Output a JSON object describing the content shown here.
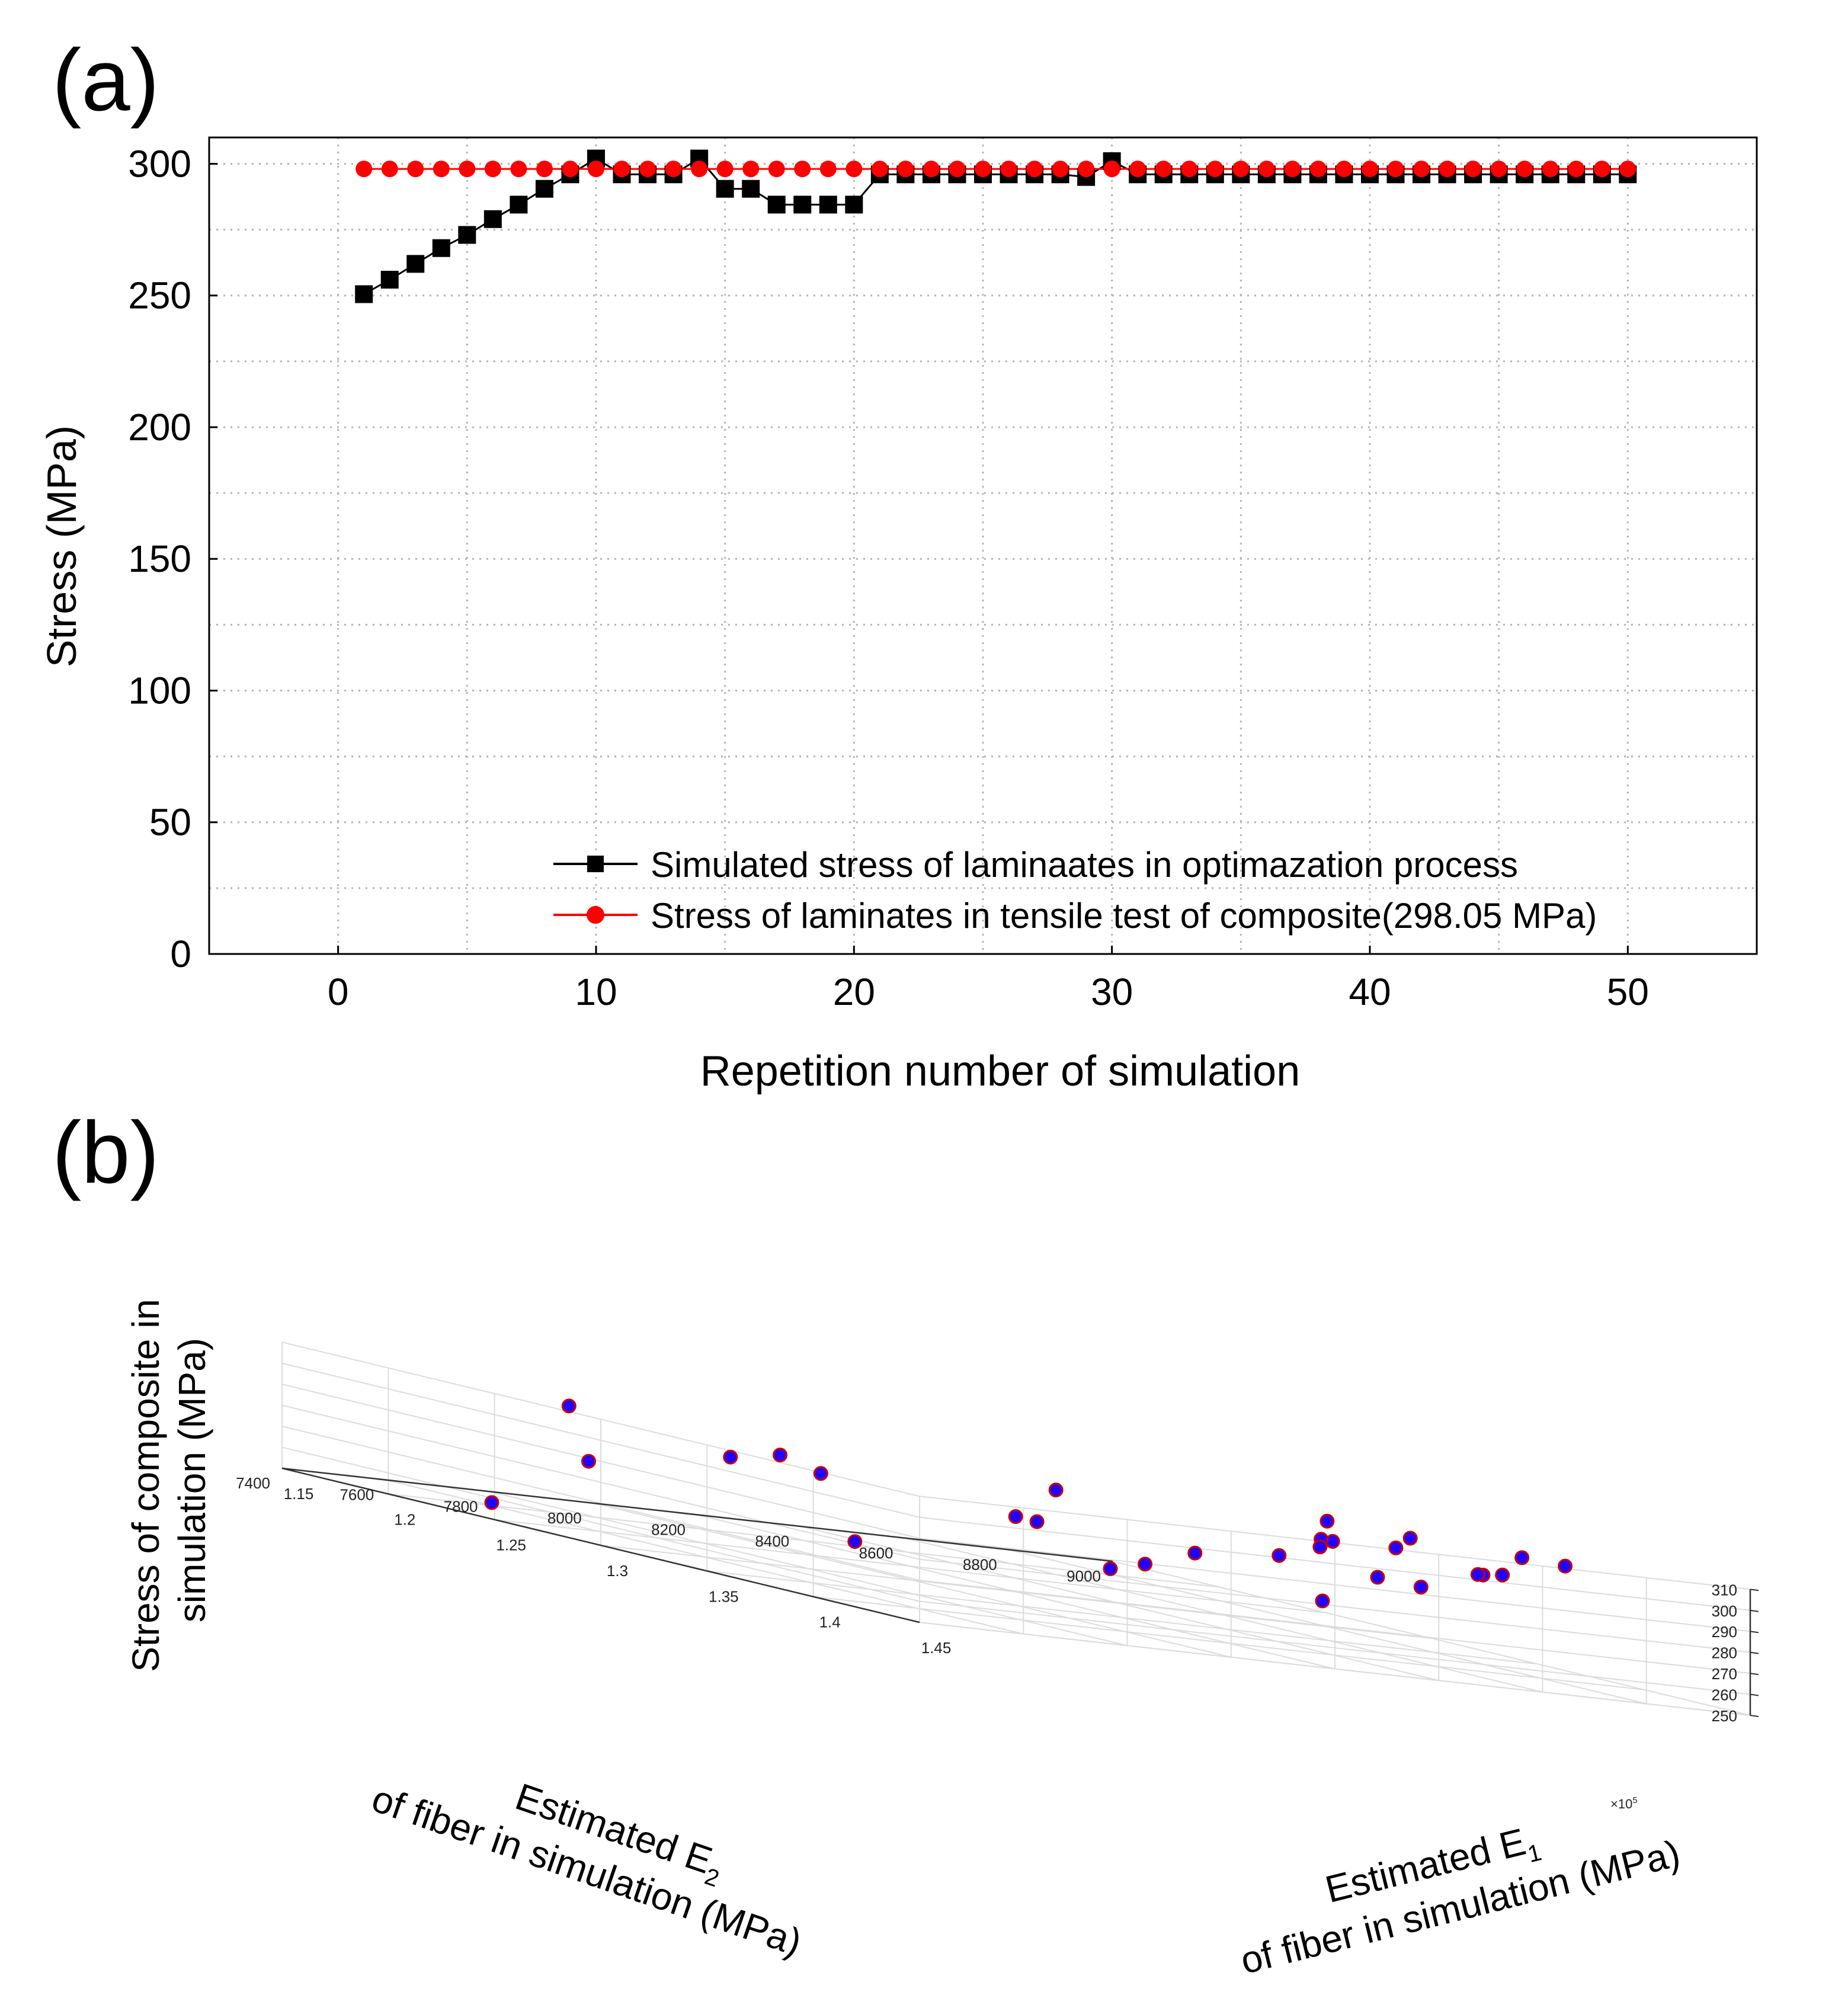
{
  "colors": {
    "black_series": "#000000",
    "red_series": "#ff0000",
    "grid": "#b4b4b4",
    "grid3d": "#dcdcdc",
    "marker_fill": "#2200ff",
    "marker_edge": "#cc0000"
  },
  "chart_data": [
    {
      "panel_label": "(a)",
      "type": "line",
      "xlabel": "Repetition number of simulation",
      "ylabel": "Stress (MPa)",
      "xlim": [
        -5,
        55
      ],
      "ylim": [
        0,
        310
      ],
      "xticks": [
        0,
        10,
        20,
        30,
        40,
        50
      ],
      "xtick_labels": [
        "0",
        "10",
        "20",
        "30",
        "40",
        "50"
      ],
      "yticks": [
        0,
        50,
        100,
        150,
        200,
        250,
        300
      ],
      "ytick_labels": [
        "0",
        "50",
        "100",
        "150",
        "200",
        "250",
        "300"
      ],
      "grid": true,
      "legend_position": "bottom-right",
      "x": [
        1,
        2,
        3,
        4,
        5,
        6,
        7,
        8,
        9,
        10,
        11,
        12,
        13,
        14,
        15,
        16,
        17,
        18,
        19,
        20,
        21,
        22,
        23,
        24,
        25,
        26,
        27,
        28,
        29,
        30,
        31,
        32,
        33,
        34,
        35,
        36,
        37,
        38,
        39,
        40,
        41,
        42,
        43,
        44,
        45,
        46,
        47,
        48,
        49,
        50
      ],
      "series": [
        {
          "name": "Simulated stress of laminaates in optimazation process",
          "marker": "square",
          "color": "#000000",
          "values": [
            250.5,
            256,
            262,
            268,
            273,
            279,
            284.5,
            290.5,
            296,
            302,
            296,
            296,
            296,
            302,
            290.5,
            290.5,
            284.5,
            284.5,
            284.5,
            284.5,
            296,
            296,
            296,
            296,
            296,
            296,
            296,
            296,
            295,
            301,
            296,
            296,
            296,
            296,
            296,
            296,
            296,
            296,
            296,
            296,
            296,
            296,
            296,
            296,
            296,
            296,
            296,
            296,
            296,
            296
          ]
        },
        {
          "name": "Stress of laminates in tensile test of composite(298.05 MPa)",
          "marker": "circle",
          "color": "#ff0000",
          "values": [
            298.05,
            298.05,
            298.05,
            298.05,
            298.05,
            298.05,
            298.05,
            298.05,
            298.05,
            298.05,
            298.05,
            298.05,
            298.05,
            298.05,
            298.05,
            298.05,
            298.05,
            298.05,
            298.05,
            298.05,
            298.05,
            298.05,
            298.05,
            298.05,
            298.05,
            298.05,
            298.05,
            298.05,
            298.05,
            298.05,
            298.05,
            298.05,
            298.05,
            298.05,
            298.05,
            298.05,
            298.05,
            298.05,
            298.05,
            298.05,
            298.05,
            298.05,
            298.05,
            298.05,
            298.05,
            298.05,
            298.05,
            298.05,
            298.05,
            298.05
          ]
        }
      ]
    },
    {
      "panel_label": "(b)",
      "type": "scatter3d",
      "zlabel_lines": [
        "Stress of composite in",
        "simulation (MPa)"
      ],
      "e1_label_line1": "Estimated E",
      "e1_label_sub": "1",
      "e1_label_line2": "of fiber in simulation (MPa)",
      "e2_label_line1": "Estimated E",
      "e2_label_sub": "2",
      "e2_label_line2": "of fiber in simulation (MPa)",
      "e1_exponent_prefix": "×10",
      "e1_exponent_power": "5",
      "zlim": [
        250,
        310
      ],
      "zticks": [
        250,
        260,
        270,
        280,
        290,
        300,
        310
      ],
      "ztick_labels": [
        "250",
        "260",
        "270",
        "280",
        "290",
        "300",
        "310"
      ],
      "e1_range": [
        1.15,
        1.45
      ],
      "e1_ticks": [
        1.15,
        1.2,
        1.25,
        1.3,
        1.35,
        1.4,
        1.45
      ],
      "e1_tick_labels": [
        "1.15",
        "1.2",
        "1.25",
        "1.3",
        "1.35",
        "1.4",
        "1.45"
      ],
      "e2_range": [
        7400,
        9000
      ],
      "e2_ticks": [
        7400,
        7600,
        7800,
        8000,
        8200,
        8400,
        8600,
        8800,
        9000
      ],
      "e2_tick_labels": [
        "7400",
        "7600",
        "7800",
        "8000",
        "8200",
        "8400",
        "8600",
        "8800",
        "9000"
      ],
      "points_e1_e2_stress": [
        [
          1.193,
          7628,
          250.5
        ],
        [
          1.229,
          8180,
          256
        ],
        [
          1.3,
          8790,
          262
        ],
        [
          1.315,
          8320,
          268
        ],
        [
          1.262,
          8700,
          273
        ],
        [
          1.368,
          8170,
          279
        ],
        [
          1.3,
          8240,
          284.5
        ],
        [
          1.37,
          8420,
          290.5
        ],
        [
          1.409,
          8450,
          290.5
        ],
        [
          1.427,
          8460,
          290.5
        ],
        [
          1.339,
          8650,
          296
        ],
        [
          1.336,
          8640,
          296
        ],
        [
          1.4,
          8690,
          296
        ],
        [
          1.392,
          8760,
          296
        ],
        [
          1.334,
          8820,
          301
        ],
        [
          1.367,
          8900,
          302
        ],
        [
          1.38,
          8930,
          302
        ],
        [
          1.268,
          8930,
          296
        ],
        [
          1.19,
          8100,
          284.5
        ],
        [
          1.158,
          7920,
          296
        ],
        [
          1.29,
          8240,
          284.5
        ],
        [
          1.25,
          8990,
          281
        ],
        [
          1.221,
          7700,
          279
        ],
        [
          1.25,
          7950,
          296
        ],
        [
          1.265,
          8420,
          296
        ],
        [
          1.213,
          8180,
          284.5
        ],
        [
          1.337,
          8780,
          296
        ],
        [
          1.4,
          8680,
          296
        ]
      ]
    }
  ]
}
